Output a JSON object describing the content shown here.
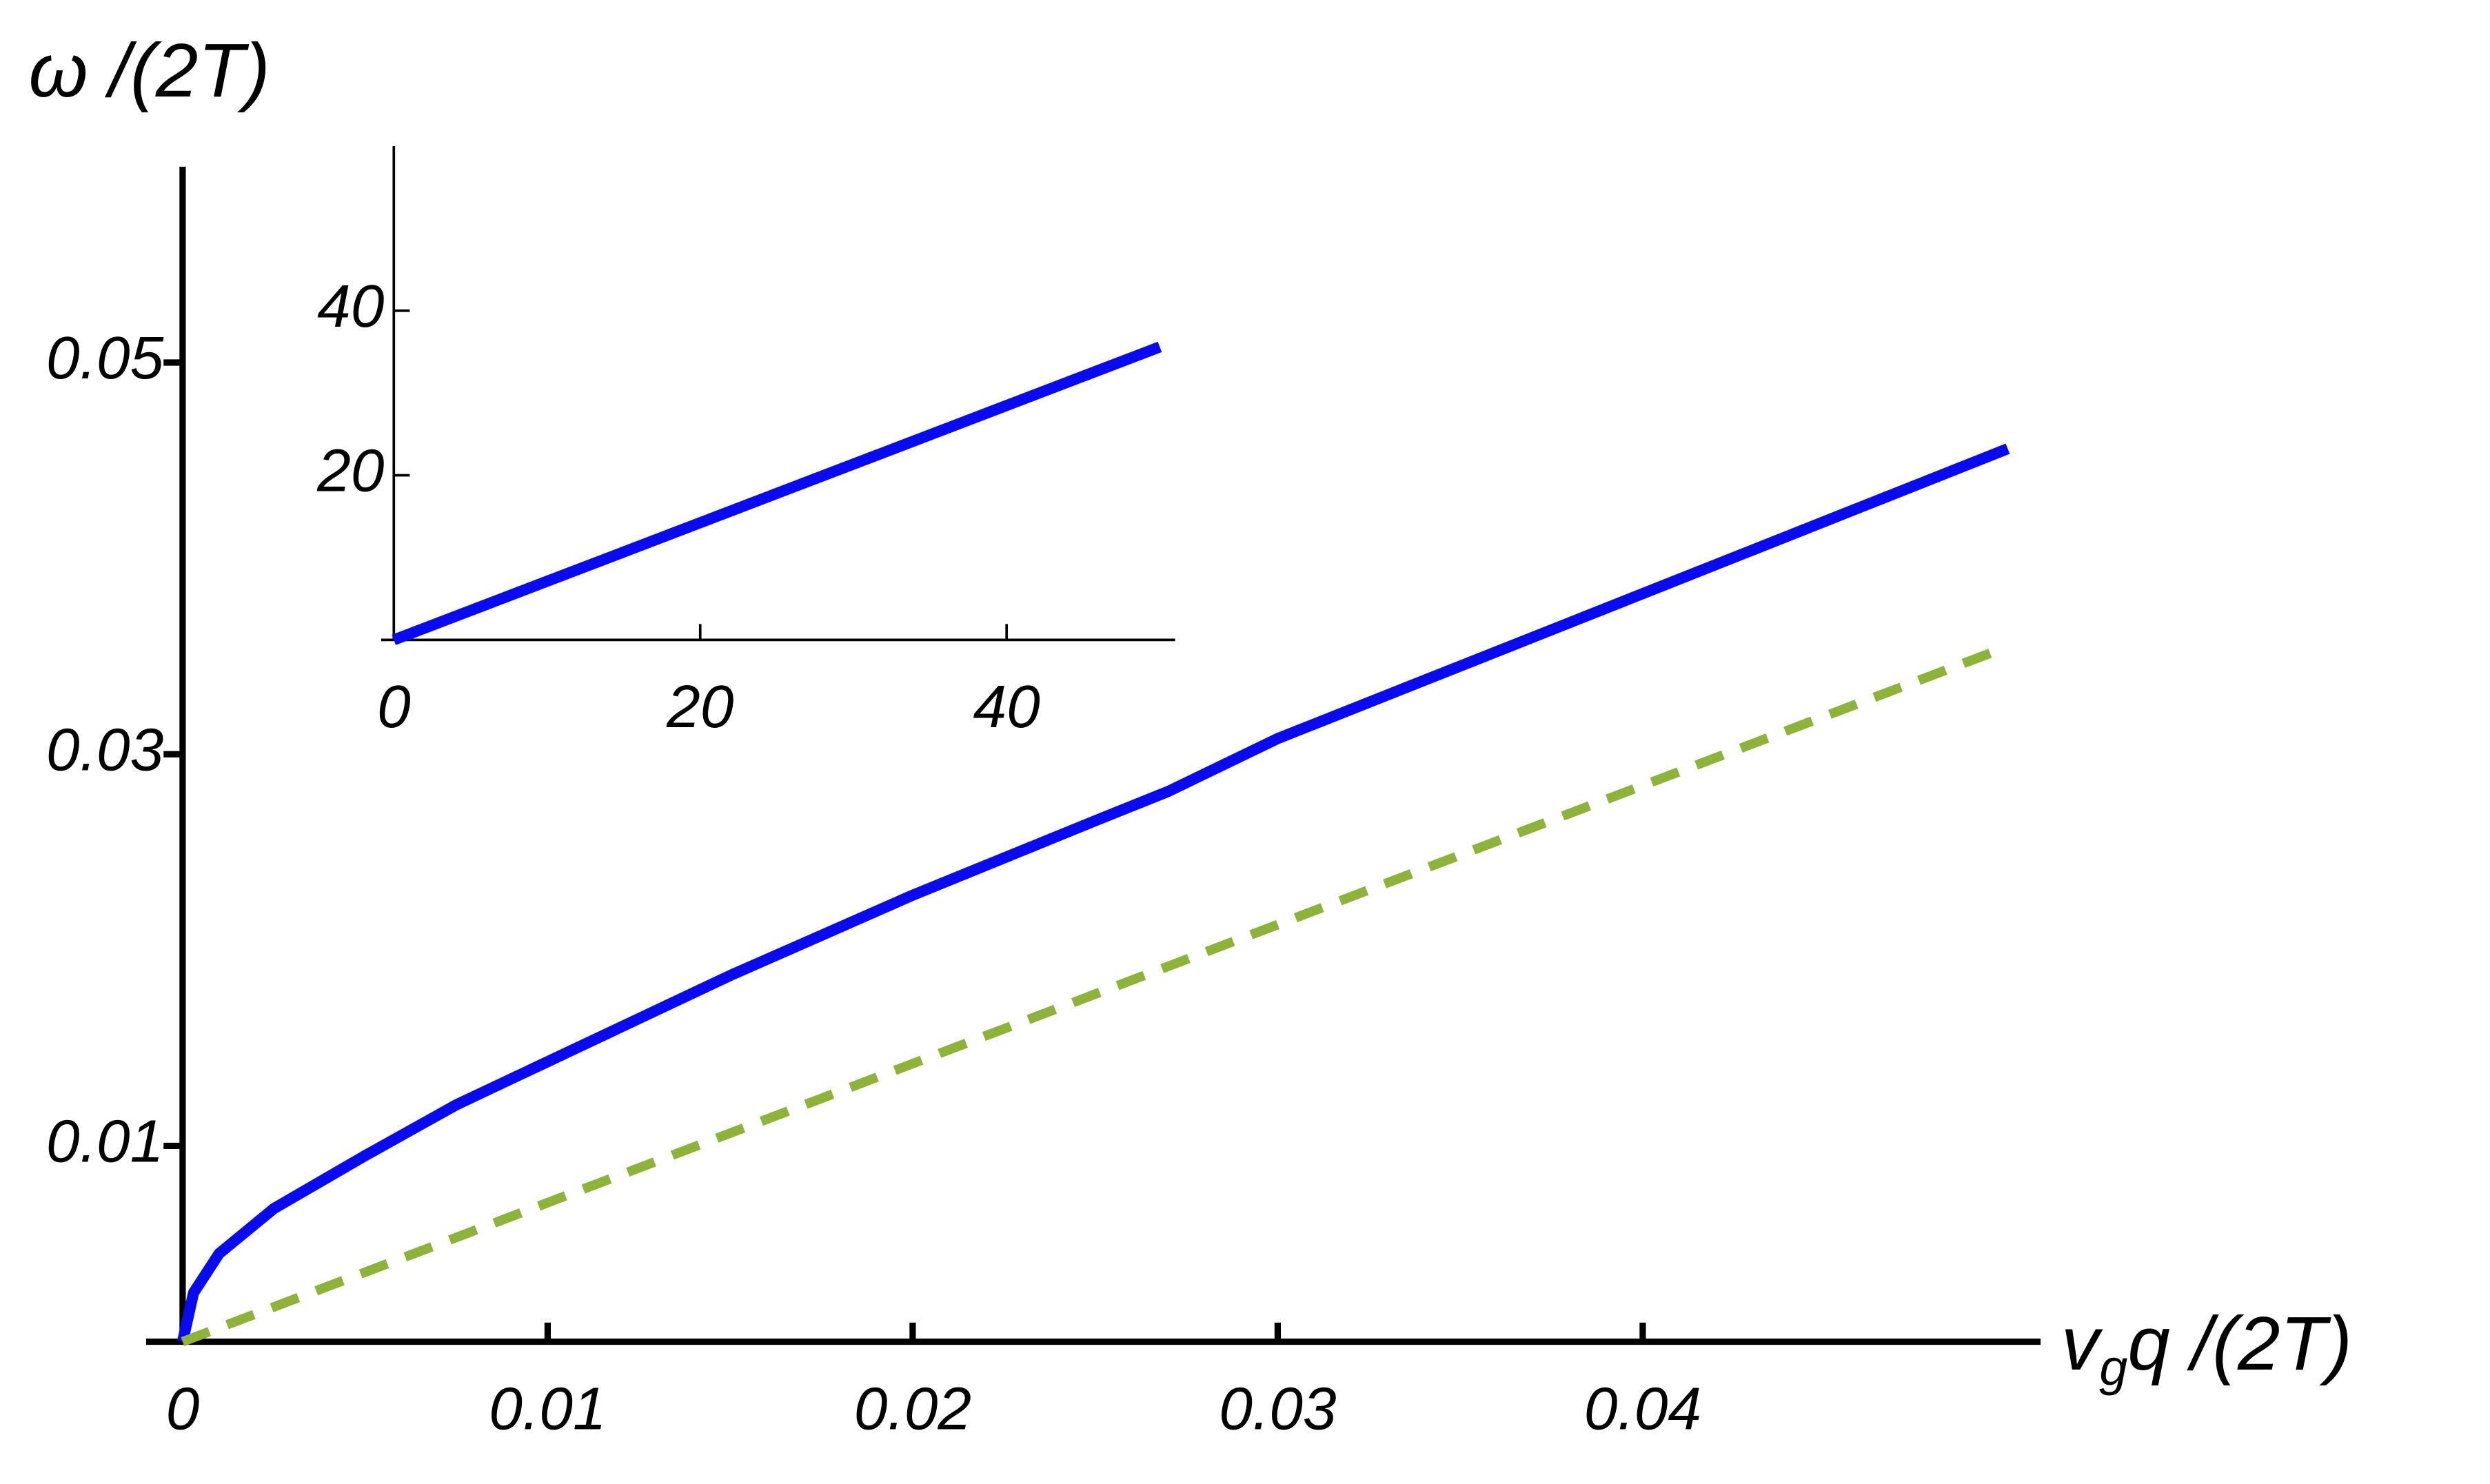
{
  "chart_data": [
    {
      "type": "line",
      "ylabel": "ω /(2T)",
      "xlabel": [
        "v",
        "g",
        "q /(2T)"
      ],
      "xlim": [
        0,
        0.0509
      ],
      "ylim": [
        0,
        0.06
      ],
      "xticks": [
        0,
        0.01,
        0.02,
        0.03,
        0.04
      ],
      "yticks": [
        0.01,
        0.03,
        0.05
      ],
      "series": [
        {
          "color": "#0a0af0",
          "dashed": false,
          "x": [
            0,
            0.0003,
            0.001,
            0.0025,
            0.005,
            0.0075,
            0.01,
            0.015,
            0.02,
            0.025,
            0.027,
            0.03,
            0.035,
            0.04,
            0.045,
            0.05
          ],
          "values": [
            0,
            0.0025,
            0.0045,
            0.0068,
            0.0095,
            0.0121,
            0.0143,
            0.0187,
            0.0228,
            0.0266,
            0.0281,
            0.0308,
            0.0345,
            0.0382,
            0.0419,
            0.0456
          ]
        },
        {
          "color": "#8db33a",
          "dashed": true,
          "x": [
            0,
            0.05
          ],
          "values": [
            0,
            0.0355
          ]
        }
      ]
    },
    {
      "type": "line",
      "xlim": [
        0,
        51
      ],
      "ylim": [
        0,
        60
      ],
      "xticks": [
        0,
        20,
        40
      ],
      "yticks": [
        20,
        40
      ],
      "series": [
        {
          "color": "#0a0af0",
          "dashed": false,
          "x": [
            0,
            50
          ],
          "values": [
            0,
            35.6
          ]
        }
      ]
    }
  ]
}
